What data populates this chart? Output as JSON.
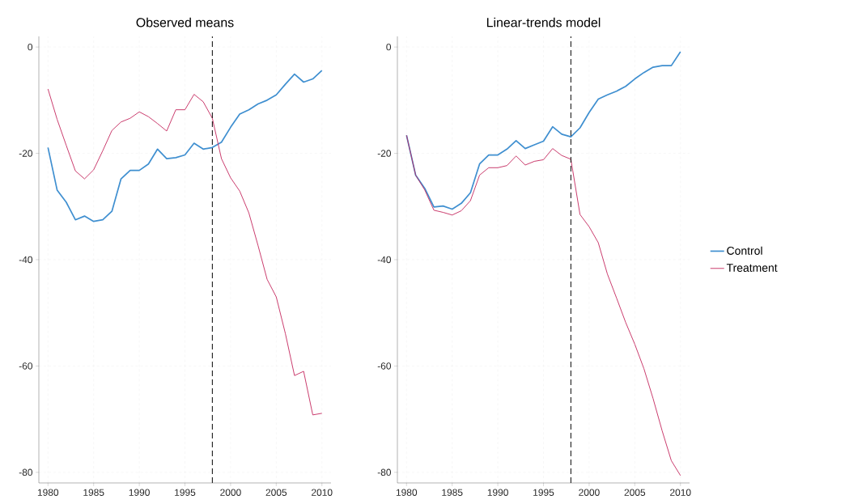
{
  "chart_data": [
    {
      "type": "line",
      "title": "Observed means",
      "x": [
        1980,
        1981,
        1982,
        1983,
        1984,
        1985,
        1986,
        1987,
        1988,
        1989,
        1990,
        1991,
        1992,
        1993,
        1994,
        1995,
        1996,
        1997,
        1998,
        1999,
        2000,
        2001,
        2002,
        2003,
        2004,
        2005,
        2006,
        2007,
        2008,
        2009,
        2010
      ],
      "series": [
        {
          "color": "#3f8fd0",
          "values": [
            -18.9,
            -26.9,
            -29.2,
            -32.5,
            -31.8,
            -32.8,
            -32.5,
            -30.9,
            -24.8,
            -23.2,
            -23.2,
            -22,
            -19.2,
            -21,
            -20.8,
            -20.3,
            -18.1,
            -19.2,
            -18.9,
            -17.9,
            -15.1,
            -12.6,
            -11.8,
            -10.7,
            -10,
            -9,
            -7,
            -5.1,
            -6.6,
            -6,
            -4.4
          ]
        },
        {
          "color": "#c4275e",
          "values": [
            -7.9,
            -13.6,
            -18.5,
            -23.3,
            -24.8,
            -23.1,
            -19.5,
            -15.7,
            -14.1,
            -13.4,
            -12.2,
            -13.1,
            -14.4,
            -15.8,
            -11.8,
            -11.8,
            -8.9,
            -10.3,
            -13.4,
            -21,
            -24.6,
            -27.1,
            -31.2,
            -37.3,
            -43.7,
            -47,
            -53.9,
            -61.8,
            -61,
            -69.2,
            -68.9
          ]
        }
      ],
      "xlim": [
        1979,
        2011
      ],
      "ylim": [
        -82,
        2
      ],
      "xticks": [
        1980,
        1985,
        1990,
        1995,
        2000,
        2005,
        2010
      ],
      "yticks": [
        -80,
        -60,
        -40,
        -20,
        0
      ],
      "grid": true,
      "line_style": "solid",
      "ref_lines": [
        {
          "axis": "x",
          "value": 1998,
          "color": "#000000",
          "line_style": "dashed"
        }
      ]
    },
    {
      "type": "line",
      "title": "Linear-trends model",
      "x": [
        1980,
        1981,
        1982,
        1983,
        1984,
        1985,
        1986,
        1987,
        1988,
        1989,
        1990,
        1991,
        1992,
        1993,
        1994,
        1995,
        1996,
        1997,
        1998,
        1999,
        2000,
        2001,
        2002,
        2003,
        2004,
        2005,
        2006,
        2007,
        2008,
        2009,
        2010
      ],
      "series": [
        {
          "name": "Control",
          "color": "#3f8fd0",
          "values": [
            -16.6,
            -24.1,
            -26.6,
            -30.1,
            -29.9,
            -30.5,
            -29.4,
            -27.4,
            -22,
            -20.3,
            -20.3,
            -19.2,
            -17.6,
            -19.1,
            -18.4,
            -17.7,
            -15,
            -16.4,
            -16.9,
            -15.2,
            -12.3,
            -9.8,
            -9,
            -8.3,
            -7.4,
            -6,
            -4.8,
            -3.8,
            -3.5,
            -3.5,
            -0.9
          ]
        },
        {
          "name": "Treatment",
          "color": "#c4275e",
          "values": [
            -16.6,
            -24.1,
            -26.9,
            -30.7,
            -31.1,
            -31.6,
            -30.8,
            -28.9,
            -24.1,
            -22.7,
            -22.7,
            -22.3,
            -20.5,
            -22.2,
            -21.5,
            -21.2,
            -19.1,
            -20.4,
            -21.1,
            -31.5,
            -33.8,
            -36.8,
            -42.7,
            -47.2,
            -51.8,
            -55.9,
            -60.5,
            -66.1,
            -72.2,
            -77.8,
            -80.6
          ]
        }
      ],
      "xlim": [
        1979,
        2011
      ],
      "ylim": [
        -82,
        2
      ],
      "xticks": [
        1980,
        1985,
        1990,
        1995,
        2000,
        2005,
        2010
      ],
      "yticks": [
        -80,
        -60,
        -40,
        -20,
        0
      ],
      "grid": true,
      "line_style": "solid",
      "legend": "right",
      "ref_lines": [
        {
          "axis": "x",
          "value": 1998,
          "color": "#000000",
          "line_style": "dashed"
        }
      ]
    }
  ]
}
